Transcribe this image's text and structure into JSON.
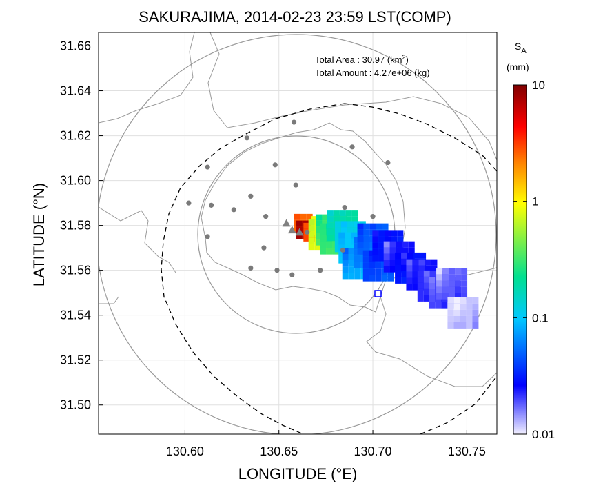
{
  "title": "SAKURAJIMA, 2014-02-23 23:59 LST(COMP)",
  "annotations": {
    "area_label": "Total Area   : 30.97 (km",
    "area_sup": "2",
    "area_close": ")",
    "amount_label": "Total Amount : 4.27e+06 (kg)"
  },
  "x_axis": {
    "label": "LONGITUDE (°E)",
    "range": [
      130.554,
      130.766
    ],
    "ticks": [
      130.6,
      130.65,
      130.7,
      130.75
    ],
    "tick_labels": [
      "130.60",
      "130.65",
      "130.70",
      "130.75"
    ]
  },
  "y_axis": {
    "label": "LATITUDE (°N)",
    "range": [
      31.487,
      31.666
    ],
    "ticks": [
      31.5,
      31.52,
      31.54,
      31.56,
      31.58,
      31.6,
      31.62,
      31.64,
      31.66
    ],
    "tick_labels": [
      "31.50",
      "31.52",
      "31.54",
      "31.56",
      "31.58",
      "31.60",
      "31.62",
      "31.64",
      "31.66"
    ]
  },
  "grid": true,
  "colorbar": {
    "title_main": "S",
    "title_sub": "A",
    "unit": "(mm)",
    "scale": "log",
    "range": [
      0.01,
      10
    ],
    "tick_labels": [
      "10",
      "1",
      "0.1",
      "0.01"
    ],
    "ticks": [
      10,
      1,
      0.1,
      0.01
    ],
    "colors": [
      "#f2f0ff",
      "#0000ff",
      "#00c8ff",
      "#00e090",
      "#ffff00",
      "#ff8000",
      "#ff0000",
      "#800000"
    ],
    "position": "right"
  },
  "range_rings": {
    "center": [
      130.658,
      31.577
    ],
    "radii_km": [
      5,
      10
    ],
    "color": "#999999"
  },
  "stations": [
    [
      130.658,
      31.626
    ],
    [
      130.689,
      31.615
    ],
    [
      130.633,
      31.619
    ],
    [
      130.612,
      31.606
    ],
    [
      130.648,
      31.607
    ],
    [
      130.708,
      31.608
    ],
    [
      130.659,
      31.598
    ],
    [
      130.602,
      31.59
    ],
    [
      130.614,
      31.589
    ],
    [
      130.626,
      31.587
    ],
    [
      130.635,
      31.593
    ],
    [
      130.643,
      31.584
    ],
    [
      130.685,
      31.588
    ],
    [
      130.7,
      31.584
    ],
    [
      130.612,
      31.575
    ],
    [
      130.642,
      31.57
    ],
    [
      130.665,
      31.577
    ],
    [
      130.684,
      31.569
    ],
    [
      130.635,
      31.561
    ],
    [
      130.649,
      31.56
    ],
    [
      130.657,
      31.558
    ],
    [
      130.672,
      31.56
    ]
  ],
  "vents": [
    [
      130.654,
      31.581
    ],
    [
      130.657,
      31.578
    ],
    [
      130.661,
      31.577
    ]
  ],
  "chart_data": {
    "type": "heatmap",
    "title": "SAKURAJIMA, 2014-02-23 23:59 LST(COMP)",
    "xlabel": "LONGITUDE (°E)",
    "ylabel": "LATITUDE (°N)",
    "xlim": [
      130.554,
      130.766
    ],
    "ylim": [
      31.487,
      31.666
    ],
    "value_label": "SA (mm)",
    "plume": [
      {
        "lon": 130.663,
        "lat": 31.581,
        "v": 2.5
      },
      {
        "lon": 130.664,
        "lat": 31.578,
        "v": 8.0
      },
      {
        "lon": 130.668,
        "lat": 31.577,
        "v": 3.0
      },
      {
        "lon": 130.672,
        "lat": 31.58,
        "v": 1.0
      },
      {
        "lon": 130.674,
        "lat": 31.576,
        "v": 0.8
      },
      {
        "lon": 130.678,
        "lat": 31.578,
        "v": 0.35
      },
      {
        "lon": 130.68,
        "lat": 31.574,
        "v": 0.3
      },
      {
        "lon": 130.684,
        "lat": 31.58,
        "v": 0.2
      },
      {
        "lon": 130.688,
        "lat": 31.575,
        "v": 0.12
      },
      {
        "lon": 130.69,
        "lat": 31.57,
        "v": 0.1
      },
      {
        "lon": 130.692,
        "lat": 31.563,
        "v": 0.08
      },
      {
        "lon": 130.698,
        "lat": 31.568,
        "v": 0.06
      },
      {
        "lon": 130.7,
        "lat": 31.574,
        "v": 0.05
      },
      {
        "lon": 130.703,
        "lat": 31.562,
        "v": 0.04
      },
      {
        "lon": 130.708,
        "lat": 31.571,
        "v": 0.03
      },
      {
        "lon": 130.714,
        "lat": 31.566,
        "v": 0.025
      },
      {
        "lon": 130.72,
        "lat": 31.561,
        "v": 0.03
      },
      {
        "lon": 130.726,
        "lat": 31.558,
        "v": 0.025
      },
      {
        "lon": 130.732,
        "lat": 31.553,
        "v": 0.022
      },
      {
        "lon": 130.738,
        "lat": 31.55,
        "v": 0.02
      },
      {
        "lon": 130.742,
        "lat": 31.554,
        "v": 0.018
      },
      {
        "lon": 130.748,
        "lat": 31.541,
        "v": 0.012
      }
    ]
  }
}
